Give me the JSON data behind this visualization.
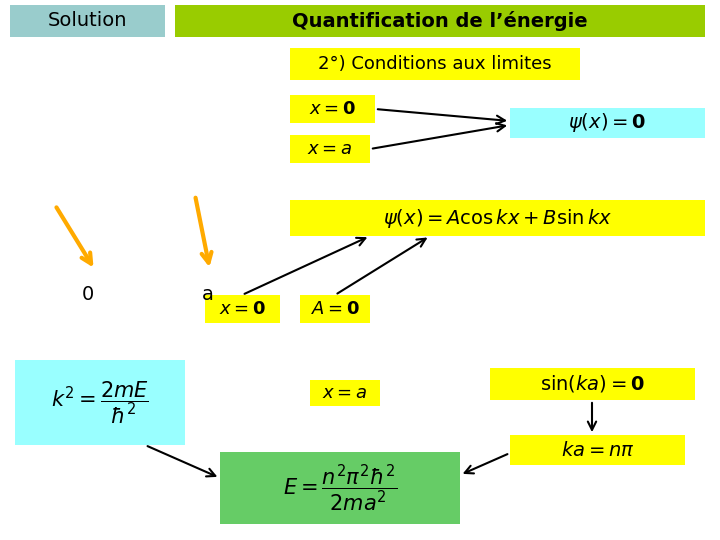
{
  "bg_color": "#ffffff",
  "title_bar_color": "#99cccc",
  "title_text": "Solution",
  "header_bar_color": "#99cc00",
  "header_text": "Quantification de l’énergie",
  "subtitle_bg": "#ffff00",
  "subtitle_text": "2°) Conditions aux limites",
  "yellow": "#ffff00",
  "cyan": "#99ffff",
  "green": "#66cc66",
  "orange_arrow": "#ffaa00",
  "figsize": [
    7.2,
    5.4
  ],
  "dpi": 100
}
